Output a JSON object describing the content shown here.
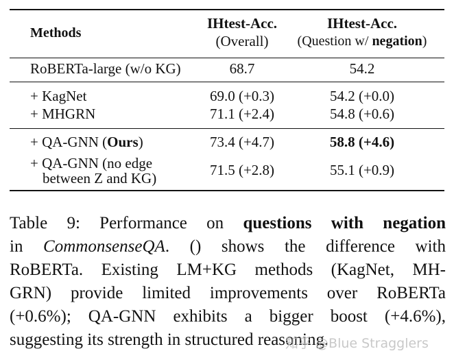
{
  "table": {
    "header": {
      "methods": "Methods",
      "col1": [
        "IHtest-Acc.",
        "(Overall)"
      ],
      "col2": [
        "IHtest-Acc.",
        "(Question w/ ",
        "negation",
        ")"
      ]
    },
    "rows": [
      {
        "method": [
          "RoBERTa-large (w/o KG)"
        ],
        "overall": "68.7",
        "negation": "54.2"
      },
      {
        "method": [
          "+ KagNet"
        ],
        "overall": "69.0 (+0.3)",
        "negation": "54.2 (+0.0)"
      },
      {
        "method": [
          "+ MHGRN"
        ],
        "overall": "71.1 (+2.4)",
        "negation": "54.8 (+0.6)"
      },
      {
        "method": [
          "+ QA-GNN (",
          "Ours",
          ")"
        ],
        "overall": "73.4 (+4.7)",
        "negation": "58.8 (+4.6)"
      },
      {
        "method": [
          "+ QA-GNN (no edge",
          "between Z and KG)"
        ],
        "overall": "71.5 (+2.8)",
        "negation": "55.1 (+0.9)"
      }
    ]
  },
  "caption": {
    "lines": [
      [
        "Table 9:  Performance on ",
        "questions with negation"
      ],
      [
        "in ",
        "CommonsenseQA",
        ". () shows the difference with"
      ],
      [
        "RoBERTa.  Existing LM+KG methods (KagNet, MH-"
      ],
      [
        "GRN) provide limited improvements over RoBERTa"
      ],
      [
        "(+0.6%); QA-GNN exhibits a bigger boost (+4.6%),"
      ],
      [
        "suggesting its strength in structured reasoning."
      ]
    ]
  },
  "watermark": "知乎 @Blue Stragglers"
}
